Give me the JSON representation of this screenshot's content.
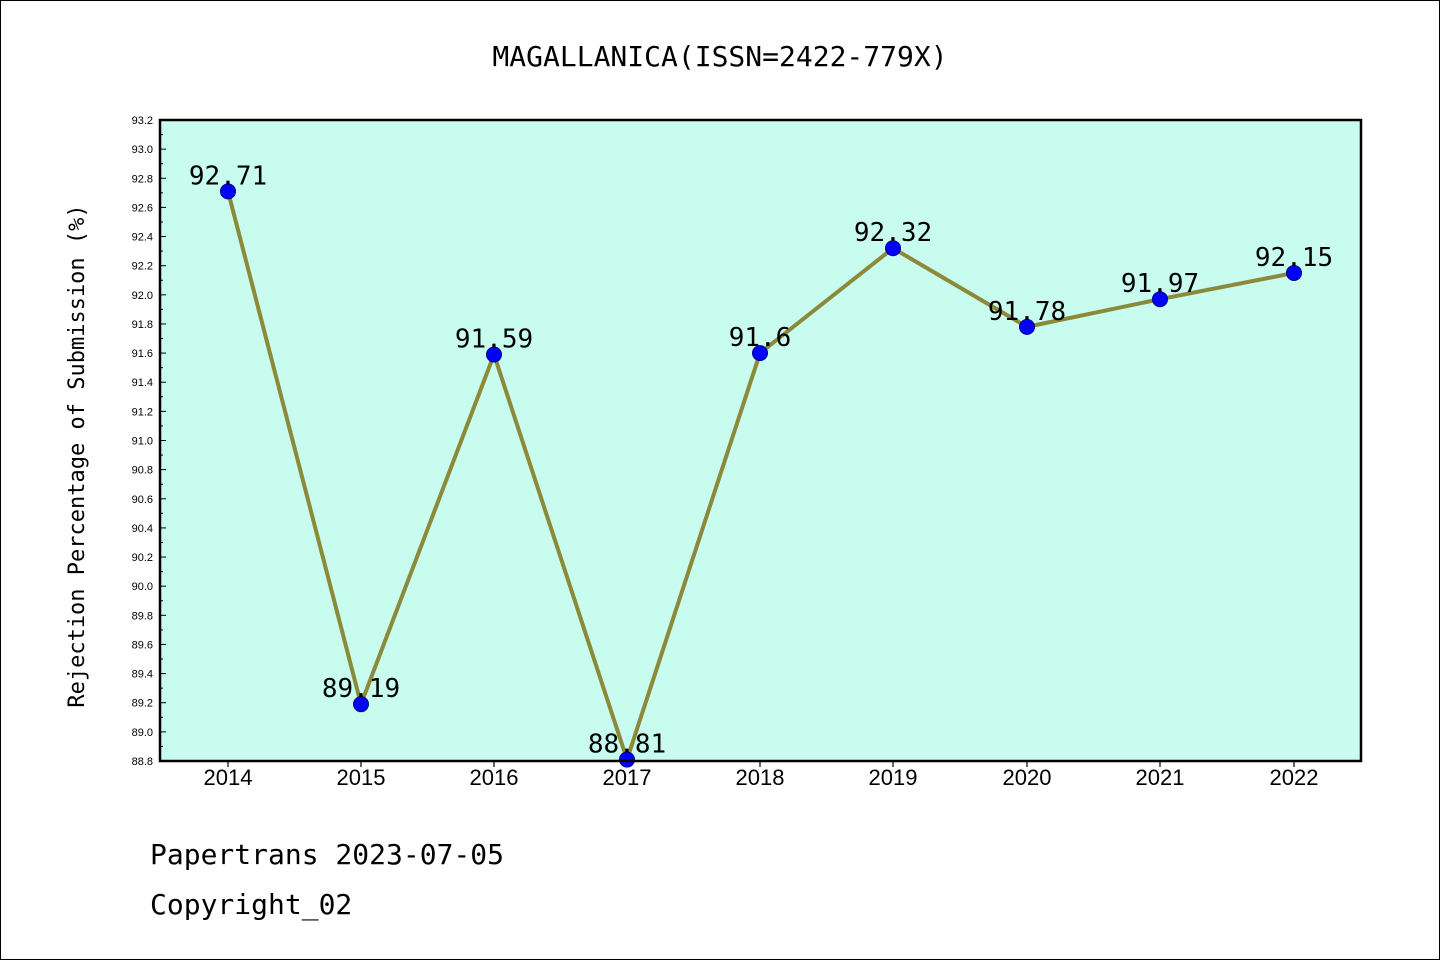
{
  "chart_data": {
    "type": "line",
    "title": "MAGALLANICA(ISSN=2422-779X)",
    "xlabel": "",
    "ylabel": "Rejection Percentage of Submission (%)",
    "categories": [
      "2014",
      "2015",
      "2016",
      "2017",
      "2018",
      "2019",
      "2020",
      "2021",
      "2022"
    ],
    "series": [
      {
        "values": [
          92.71,
          89.19,
          91.59,
          88.81,
          91.6,
          92.32,
          91.78,
          91.97,
          92.15
        ],
        "labels": [
          "92.71",
          "89.19",
          "91.59",
          "88.81",
          "91.6",
          "92.32",
          "91.78",
          "91.97",
          "92.15"
        ]
      }
    ],
    "ylim": [
      88.8,
      93.2
    ],
    "yticks": [
      "88.8",
      "89.0",
      "89.2",
      "89.4",
      "89.6",
      "89.8",
      "90.0",
      "90.2",
      "90.4",
      "90.6",
      "90.8",
      "91.0",
      "91.2",
      "91.4",
      "91.6",
      "91.8",
      "92.0",
      "92.2",
      "92.4",
      "92.6",
      "92.8",
      "93.0",
      "93.2"
    ],
    "grid": false,
    "colors": {
      "plot_background": "#c8fcee",
      "line": "#8b8a3a",
      "marker": "#0000ff"
    }
  },
  "footer": {
    "line1": "Papertrans 2023-07-05",
    "line2": "Copyright_02"
  }
}
